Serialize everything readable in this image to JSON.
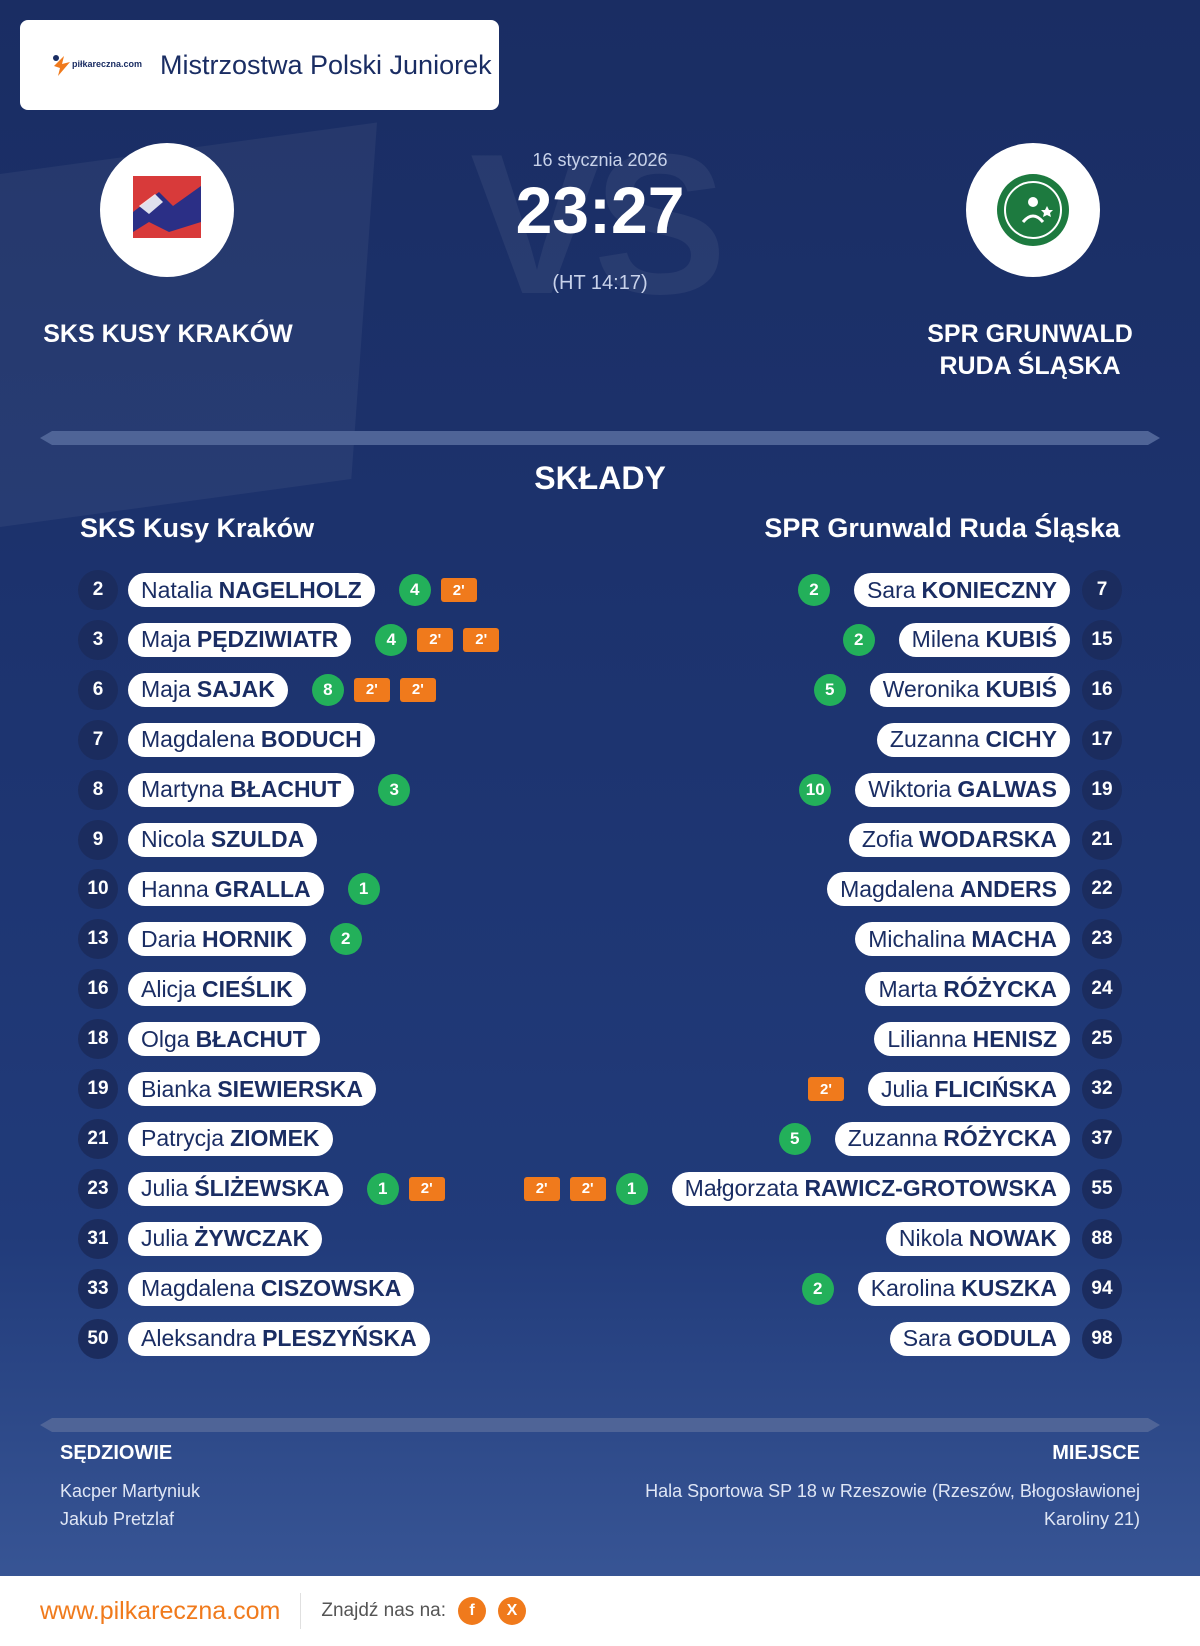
{
  "header": {
    "logo_text": "piłkareczna.com",
    "title": "Mistrzostwa Polski Juniorek"
  },
  "match": {
    "date": "16 stycznia 2026",
    "score": "23:27",
    "halftime": "(HT 14:17)",
    "watermark": "VS",
    "home_name": "SKS KUSY KRAKÓW",
    "away_name_line1": "SPR GRUNWALD",
    "away_name_line2": "RUDA ŚLĄSKA"
  },
  "lineups": {
    "title": "SKŁADY",
    "home_team": "SKS Kusy Kraków",
    "away_team": "SPR Grunwald Ruda Śląska",
    "home": [
      {
        "number": "2",
        "first": "Natalia",
        "last": "NAGELHOLZ",
        "goals": "4",
        "penalties": [
          "2'"
        ]
      },
      {
        "number": "3",
        "first": "Maja",
        "last": "PĘDZIWIATR",
        "goals": "4",
        "penalties": [
          "2'",
          "2'"
        ]
      },
      {
        "number": "6",
        "first": "Maja",
        "last": "SAJAK",
        "goals": "8",
        "penalties": [
          "2'",
          "2'"
        ]
      },
      {
        "number": "7",
        "first": "Magdalena",
        "last": "BODUCH",
        "goals": null,
        "penalties": []
      },
      {
        "number": "8",
        "first": "Martyna",
        "last": "BŁACHUT",
        "goals": "3",
        "penalties": []
      },
      {
        "number": "9",
        "first": "Nicola",
        "last": "SZULDA",
        "goals": null,
        "penalties": []
      },
      {
        "number": "10",
        "first": "Hanna",
        "last": "GRALLA",
        "goals": "1",
        "penalties": []
      },
      {
        "number": "13",
        "first": "Daria",
        "last": "HORNIK",
        "goals": "2",
        "penalties": []
      },
      {
        "number": "16",
        "first": "Alicja",
        "last": "CIEŚLIK",
        "goals": null,
        "penalties": []
      },
      {
        "number": "18",
        "first": "Olga",
        "last": "BŁACHUT",
        "goals": null,
        "penalties": []
      },
      {
        "number": "19",
        "first": "Bianka",
        "last": "SIEWIERSKA",
        "goals": null,
        "penalties": []
      },
      {
        "number": "21",
        "first": "Patrycja",
        "last": "ZIOMEK",
        "goals": null,
        "penalties": []
      },
      {
        "number": "23",
        "first": "Julia",
        "last": "ŚLIŻEWSKA",
        "goals": "1",
        "penalties": [
          "2'"
        ]
      },
      {
        "number": "31",
        "first": "Julia",
        "last": "ŻYWCZAK",
        "goals": null,
        "penalties": []
      },
      {
        "number": "33",
        "first": "Magdalena",
        "last": "CISZOWSKA",
        "goals": null,
        "penalties": []
      },
      {
        "number": "50",
        "first": "Aleksandra",
        "last": "PLESZYŃSKA",
        "goals": null,
        "penalties": []
      }
    ],
    "away": [
      {
        "number": "7",
        "first": "Sara",
        "last": "KONIECZNY",
        "goals": "2",
        "penalties": []
      },
      {
        "number": "15",
        "first": "Milena",
        "last": "KUBIŚ",
        "goals": "2",
        "penalties": []
      },
      {
        "number": "16",
        "first": "Weronika",
        "last": "KUBIŚ",
        "goals": "5",
        "penalties": []
      },
      {
        "number": "17",
        "first": "Zuzanna",
        "last": "CICHY",
        "goals": null,
        "penalties": []
      },
      {
        "number": "19",
        "first": "Wiktoria",
        "last": "GALWAS",
        "goals": "10",
        "penalties": []
      },
      {
        "number": "21",
        "first": "Zofia",
        "last": "WODARSKA",
        "goals": null,
        "penalties": []
      },
      {
        "number": "22",
        "first": "Magdalena",
        "last": "ANDERS",
        "goals": null,
        "penalties": []
      },
      {
        "number": "23",
        "first": "Michalina",
        "last": "MACHA",
        "goals": null,
        "penalties": []
      },
      {
        "number": "24",
        "first": "Marta",
        "last": "RÓŻYCKA",
        "goals": null,
        "penalties": []
      },
      {
        "number": "25",
        "first": "Lilianna",
        "last": "HENISZ",
        "goals": null,
        "penalties": []
      },
      {
        "number": "32",
        "first": "Julia",
        "last": "FLICIŃSKA",
        "goals": null,
        "penalties": [
          "2'"
        ]
      },
      {
        "number": "37",
        "first": "Zuzanna",
        "last": "RÓŻYCKA",
        "goals": "5",
        "penalties": []
      },
      {
        "number": "55",
        "first": "Małgorzata",
        "last": "RAWICZ-GROTOWSKA",
        "goals": "1",
        "penalties": [
          "2'",
          "2'"
        ]
      },
      {
        "number": "88",
        "first": "Nikola",
        "last": "NOWAK",
        "goals": null,
        "penalties": []
      },
      {
        "number": "94",
        "first": "Karolina",
        "last": "KUSZKA",
        "goals": "2",
        "penalties": []
      },
      {
        "number": "98",
        "first": "Sara",
        "last": "GODULA",
        "goals": null,
        "penalties": []
      }
    ]
  },
  "officials": {
    "title": "SĘDZIOWIE",
    "names": [
      "Kacper Martyniuk",
      "Jakub Pretzlaf"
    ]
  },
  "venue": {
    "title": "MIEJSCE",
    "line1": "Hala Sportowa SP 18 w Rzeszowie (Rzeszów, Błogosławionej",
    "line2": "Karoliny 21)"
  },
  "footer": {
    "url": "www.pilkareczna.com",
    "find_us": "Znajdź nas na:",
    "social": [
      {
        "icon": "facebook-icon",
        "glyph": "f"
      },
      {
        "icon": "x-icon",
        "glyph": "X"
      }
    ]
  },
  "colors": {
    "background": "#1a2d63",
    "goal_badge": "#23b05a",
    "penalty_badge": "#f07a1c",
    "accent": "#f07a1c"
  }
}
